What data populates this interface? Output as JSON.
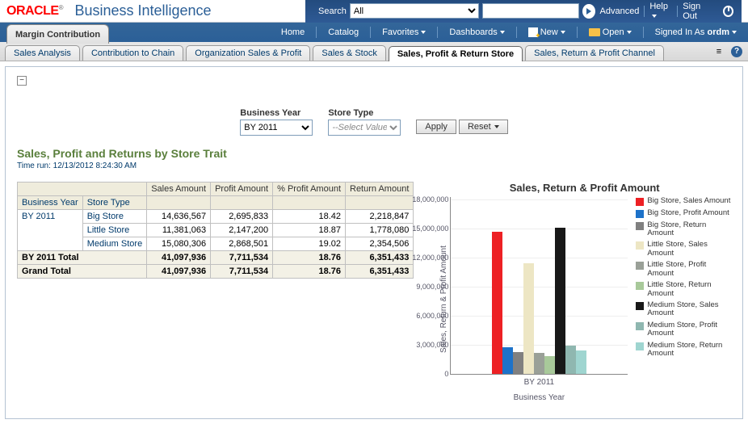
{
  "header": {
    "logo": "ORACLE",
    "app": "Business Intelligence",
    "search_label": "Search",
    "search_select": "All",
    "advanced": "Advanced",
    "help": "Help",
    "signout": "Sign Out"
  },
  "nav": {
    "breadcrumb": "Margin Contribution",
    "items": [
      "Home",
      "Catalog",
      "Favorites",
      "Dashboards"
    ],
    "new": "New",
    "open": "Open",
    "signed_in": "Signed In As",
    "user": "ordm"
  },
  "tabs": {
    "list": [
      "Sales Analysis",
      "Contribution to Chain",
      "Organization Sales & Profit",
      "Sales & Stock",
      "Sales, Profit & Return Store",
      "Sales, Return & Profit Channel"
    ],
    "active_index": 4
  },
  "prompts": {
    "by_label": "Business Year",
    "by_value": "BY 2011",
    "st_label": "Store Type",
    "st_placeholder": "--Select Value--",
    "apply": "Apply",
    "reset": "Reset"
  },
  "report": {
    "title": "Sales, Profit and Returns by Store Trait",
    "timerun": "Time run: 12/13/2012 8:24:30 AM"
  },
  "table": {
    "columns": [
      "Sales Amount",
      "Profit Amount",
      "% Profit Amount",
      "Return Amount"
    ],
    "row_head_by": "Business Year",
    "row_head_st": "Store Type",
    "by_value": "BY 2011",
    "rows": [
      {
        "store": "Big Store",
        "sales": "14,636,567",
        "profit": "2,695,833",
        "pct": "18.42",
        "ret": "2,218,847"
      },
      {
        "store": "Little Store",
        "sales": "11,381,063",
        "profit": "2,147,200",
        "pct": "18.87",
        "ret": "1,778,080"
      },
      {
        "store": "Medium Store",
        "sales": "15,080,306",
        "profit": "2,868,501",
        "pct": "19.02",
        "ret": "2,354,506"
      }
    ],
    "subtotal_label": "BY 2011 Total",
    "subtotal": {
      "sales": "41,097,936",
      "profit": "7,711,534",
      "pct": "18.76",
      "ret": "6,351,433"
    },
    "grand_label": "Grand Total",
    "grand": {
      "sales": "41,097,936",
      "profit": "7,711,534",
      "pct": "18.76",
      "ret": "6,351,433"
    }
  },
  "chart": {
    "title": "Sales, Return & Profit Amount",
    "ylabel": "Sales, Return & Profit Amount",
    "xlabel": "Business Year",
    "xtick": "BY 2011",
    "ymax": 18000000,
    "yticks": [
      "0",
      "3,000,000",
      "6,000,000",
      "9,000,000",
      "12,000,000",
      "15,000,000",
      "18,000,000"
    ],
    "series": [
      {
        "label": "Big Store, Sales Amount",
        "color": "#ed2024",
        "value": 14636567
      },
      {
        "label": "Big Store, Profit Amount",
        "color": "#1d72c9",
        "value": 2695833
      },
      {
        "label": "Big Store, Return Amount",
        "color": "#808080",
        "value": 2218847
      },
      {
        "label": "Little Store, Sales Amount",
        "color": "#ede6c4",
        "value": 11381063
      },
      {
        "label": "Little Store, Profit Amount",
        "color": "#9aa098",
        "value": 2147200
      },
      {
        "label": "Little Store, Return Amount",
        "color": "#a8c99a",
        "value": 1778080
      },
      {
        "label": "Medium Store, Sales Amount",
        "color": "#181818",
        "value": 15080306
      },
      {
        "label": "Medium Store, Profit Amount",
        "color": "#8fb7b0",
        "value": 2868501
      },
      {
        "label": "Medium Store, Return Amount",
        "color": "#9fd5d0",
        "value": 2354506
      }
    ]
  }
}
